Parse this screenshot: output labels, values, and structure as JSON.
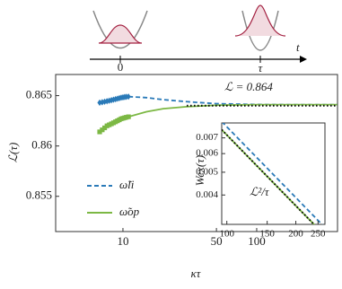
{
  "chart_data": {
    "type": "line",
    "x_label": "κτ",
    "y_label": "ℒ(τ)",
    "xscale": "log",
    "xlim": [
      3.14,
      402
    ],
    "xticks": [
      10,
      50,
      100
    ],
    "ylim": [
      0.8515,
      0.8671
    ],
    "yticks": [
      0.855,
      0.86,
      0.865
    ],
    "annotation": "ℒ = 0.864",
    "series": [
      {
        "name": "ω̃li",
        "color": "#2a7ab8",
        "dash": "dashed",
        "x": [
          11,
          15,
          20,
          30,
          50,
          100,
          200,
          400
        ],
        "values": [
          0.8649,
          0.8648,
          0.8646,
          0.8644,
          0.8642,
          0.86412,
          0.8641,
          0.8641
        ]
      },
      {
        "name": "ω̃op",
        "color": "#7cb844",
        "dash": "solid",
        "x": [
          11,
          15,
          20,
          30,
          50,
          100,
          200,
          400
        ],
        "values": [
          0.8629,
          0.8634,
          0.8637,
          0.8639,
          0.86405,
          0.8641,
          0.8641,
          0.8641
        ]
      },
      {
        "color": "#2a7ab8",
        "marker": "diamond",
        "x": [
          6.7,
          7.0,
          7.3,
          7.6,
          7.9,
          8.2,
          8.5,
          8.8,
          9.1,
          9.4,
          9.7,
          10,
          10.3,
          10.6,
          11
        ],
        "values": [
          0.8643,
          0.86435,
          0.8644,
          0.86445,
          0.8645,
          0.86455,
          0.8646,
          0.86465,
          0.8647,
          0.86475,
          0.8648,
          0.86483,
          0.86486,
          0.86488,
          0.8649
        ]
      },
      {
        "color": "#7cb844",
        "marker": "square",
        "x": [
          6.7,
          7.0,
          7.3,
          7.6,
          7.9,
          8.2,
          8.5,
          8.8,
          9.1,
          9.4,
          9.7,
          10,
          10.3,
          10.6,
          11
        ],
        "values": [
          0.8614,
          0.8616,
          0.8618,
          0.862,
          0.8621,
          0.8622,
          0.8623,
          0.8624,
          0.8625,
          0.8626,
          0.8627,
          0.86275,
          0.8628,
          0.86285,
          0.8629
        ]
      },
      {
        "color": "#000000",
        "dash": "dotted",
        "x": [
          30,
          400
        ],
        "values": [
          0.864,
          0.864
        ]
      }
    ],
    "inset": {
      "type": "line",
      "xscale": "log",
      "yscale": "log",
      "y_label": "Wex(τ)",
      "annotation": "ℒ²/τ",
      "xlim": [
        95,
        268
      ],
      "xticks": [
        100,
        150,
        200,
        250
      ],
      "ylim": [
        0.003,
        0.0081
      ],
      "yticks": [
        0.004,
        0.005,
        0.006,
        0.007
      ],
      "series": [
        {
          "color": "#2a7ab8",
          "dash": "dashed",
          "x": [
            95,
            150,
            200,
            268
          ],
          "values": [
            0.00821,
            0.0052,
            0.0039,
            0.00291
          ]
        },
        {
          "color": "#7cb844",
          "dash": "solid",
          "x": [
            95,
            150,
            200,
            268
          ],
          "values": [
            0.00758,
            0.0048,
            0.0036,
            0.00269
          ]
        },
        {
          "color": "#000000",
          "dash": "dotted",
          "x": [
            95,
            150,
            200,
            268
          ],
          "values": [
            0.00758,
            0.0048,
            0.0036,
            0.00269
          ]
        }
      ]
    }
  },
  "schematic": {
    "ticks": [
      "0",
      "τ"
    ],
    "axis_label": "t"
  }
}
